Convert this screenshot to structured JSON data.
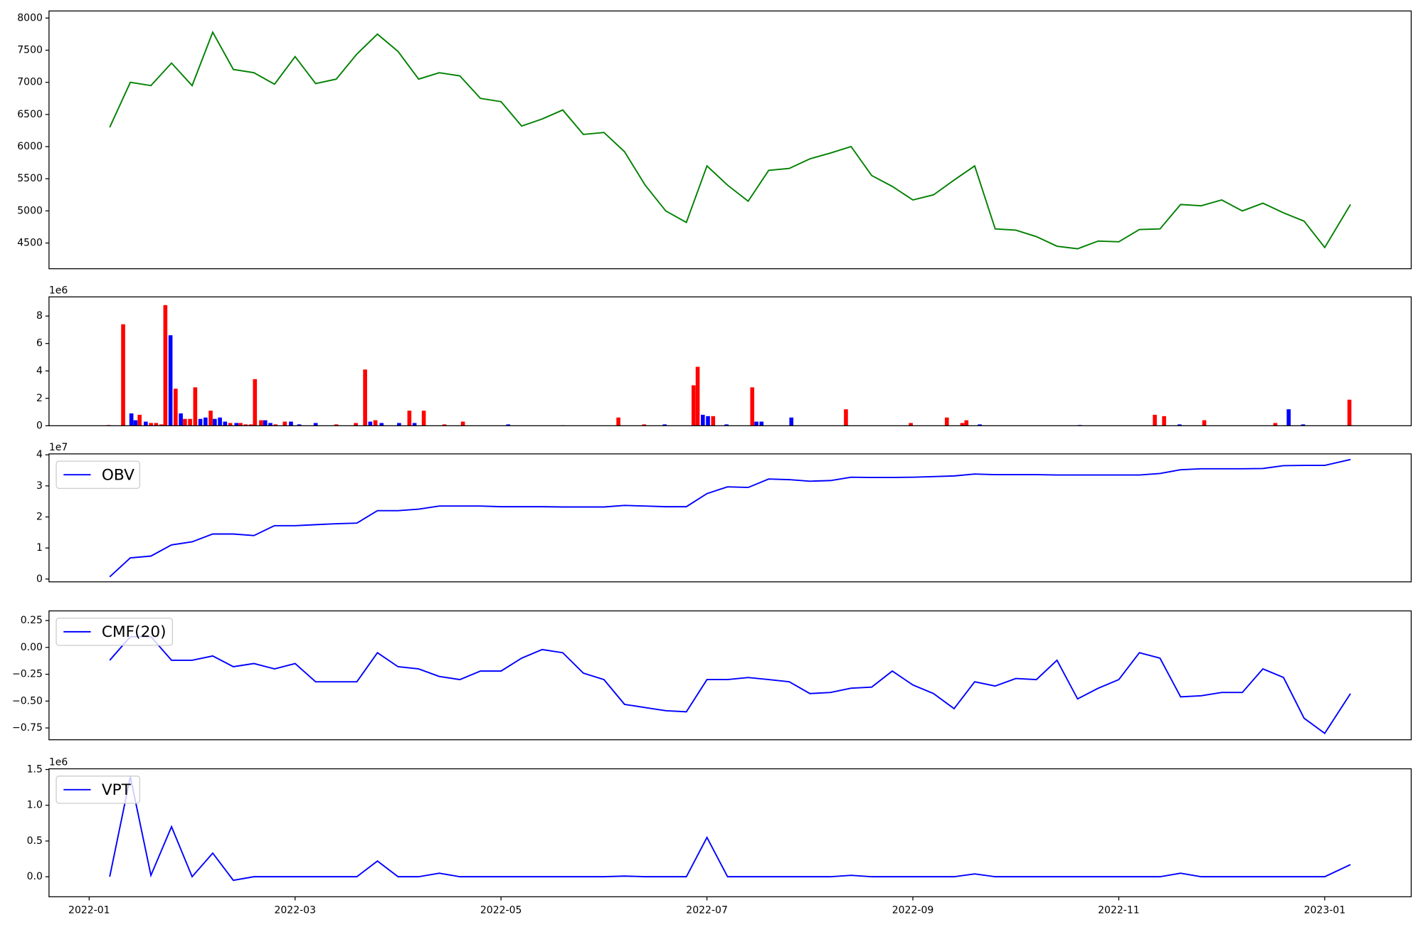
{
  "chart_data": [
    {
      "type": "line",
      "color": "green",
      "x": [
        0.2,
        0.4,
        0.6,
        0.8,
        1.0,
        1.2,
        1.4,
        1.6,
        1.8,
        2.0,
        2.2,
        2.4,
        2.6,
        2.8,
        3.0,
        3.2,
        3.4,
        3.6,
        3.8,
        4.0,
        4.2,
        4.4,
        4.6,
        4.8,
        5.0,
        5.2,
        5.4,
        5.6,
        5.8,
        6.0,
        6.2,
        6.4,
        6.6,
        6.8,
        7.0,
        7.2,
        7.4,
        7.6,
        7.8,
        8.0,
        8.2,
        8.4,
        8.6,
        8.8,
        9.0,
        9.2,
        9.4,
        9.6,
        9.8,
        10.0,
        10.2,
        10.4,
        10.6,
        10.8,
        11.0,
        11.2,
        11.4,
        11.6,
        11.8,
        12.0,
        12.25
      ],
      "values": [
        6300,
        7000,
        6950,
        7300,
        6950,
        7780,
        7200,
        7150,
        6970,
        7400,
        6980,
        7050,
        7440,
        7750,
        7480,
        7050,
        7150,
        7100,
        6750,
        6700,
        6320,
        6430,
        6570,
        6190,
        6220,
        5920,
        5400,
        5000,
        4820,
        5700,
        5400,
        5150,
        5630,
        5660,
        5810,
        5900,
        6000,
        5550,
        5380,
        5170,
        5250,
        5480,
        5700,
        4720,
        4700,
        4600,
        4450,
        4410,
        4530,
        4520,
        4710,
        4720,
        5100,
        5080,
        5170,
        5000,
        5120,
        4970,
        4840,
        4430,
        5100
      ],
      "xlim": [
        -0.39,
        12.84
      ],
      "ylim": [
        4100,
        8110
      ],
      "yticks": [
        4500,
        5000,
        5500,
        6000,
        6500,
        7000,
        7500,
        8000
      ]
    },
    {
      "type": "bar",
      "y_offset_label": "1e6",
      "x": [
        0.19,
        0.33,
        0.41,
        0.45,
        0.49,
        0.55,
        0.6,
        0.65,
        0.7,
        0.74,
        0.79,
        0.84,
        0.89,
        0.93,
        0.98,
        1.03,
        1.08,
        1.13,
        1.18,
        1.22,
        1.27,
        1.32,
        1.37,
        1.43,
        1.47,
        1.52,
        1.57,
        1.61,
        1.67,
        1.71,
        1.76,
        1.81,
        1.9,
        1.96,
        2.04,
        2.2,
        2.4,
        2.59,
        2.68,
        2.73,
        2.78,
        2.84,
        3.01,
        3.11,
        3.16,
        3.25,
        3.45,
        3.63,
        4.07,
        4.6,
        5.14,
        5.39,
        5.59,
        5.87,
        5.91,
        5.96,
        6.01,
        6.06,
        6.19,
        6.44,
        6.48,
        6.53,
        6.82,
        7.35,
        7.98,
        8.33,
        8.48,
        8.52,
        8.65,
        9.62,
        10.35,
        10.44,
        10.59,
        10.83,
        11.52,
        11.65,
        11.79,
        12.24
      ],
      "values": [
        0.05,
        7.4,
        0.9,
        0.4,
        0.8,
        0.3,
        0.2,
        0.2,
        0.1,
        8.8,
        6.6,
        2.7,
        0.9,
        0.5,
        0.5,
        2.8,
        0.5,
        0.6,
        1.1,
        0.5,
        0.6,
        0.3,
        0.2,
        0.2,
        0.2,
        0.1,
        0.1,
        3.4,
        0.4,
        0.4,
        0.2,
        0.1,
        0.3,
        0.3,
        0.1,
        0.2,
        0.1,
        0.2,
        4.1,
        0.3,
        0.4,
        0.2,
        0.2,
        1.1,
        0.2,
        1.1,
        0.1,
        0.3,
        0.1,
        0.03,
        0.6,
        0.1,
        0.1,
        2.95,
        4.3,
        0.8,
        0.7,
        0.7,
        0.1,
        2.8,
        0.3,
        0.3,
        0.6,
        1.2,
        0.2,
        0.6,
        0.2,
        0.4,
        0.1,
        0.05,
        0.8,
        0.7,
        0.1,
        0.4,
        0.2,
        1.2,
        0.1,
        1.9
      ],
      "colors": [
        "red",
        "red",
        "blue",
        "blue",
        "red",
        "blue",
        "red",
        "red",
        "red",
        "red",
        "blue",
        "red",
        "blue",
        "red",
        "red",
        "red",
        "blue",
        "blue",
        "red",
        "blue",
        "blue",
        "blue",
        "red",
        "blue",
        "red",
        "red",
        "red",
        "red",
        "red",
        "blue",
        "blue",
        "red",
        "red",
        "blue",
        "blue",
        "blue",
        "red",
        "red",
        "red",
        "blue",
        "red",
        "blue",
        "blue",
        "red",
        "blue",
        "red",
        "red",
        "red",
        "blue",
        "red",
        "red",
        "red",
        "blue",
        "red",
        "red",
        "blue",
        "blue",
        "red",
        "blue",
        "red",
        "blue",
        "blue",
        "blue",
        "red",
        "red",
        "red",
        "red",
        "red",
        "blue",
        "blue",
        "red",
        "red",
        "blue",
        "red",
        "red",
        "blue",
        "blue",
        "red"
      ],
      "xlim": [
        -0.39,
        12.84
      ],
      "ylim": [
        0,
        9.4
      ],
      "yticks": [
        0,
        2,
        4,
        6,
        8
      ]
    },
    {
      "type": "line",
      "y_offset_label": "1e7",
      "legend": "upper left",
      "x": [
        0.2,
        0.4,
        0.6,
        0.8,
        1.0,
        1.2,
        1.4,
        1.6,
        1.8,
        2.0,
        2.2,
        2.4,
        2.6,
        2.8,
        3.0,
        3.2,
        3.4,
        3.6,
        3.8,
        4.0,
        4.2,
        4.4,
        4.6,
        4.8,
        5.0,
        5.2,
        5.4,
        5.6,
        5.8,
        6.0,
        6.2,
        6.4,
        6.6,
        6.8,
        7.0,
        7.2,
        7.4,
        7.6,
        7.8,
        8.0,
        8.2,
        8.4,
        8.6,
        8.8,
        9.0,
        9.2,
        9.4,
        9.6,
        9.8,
        10.0,
        10.2,
        10.4,
        10.6,
        10.8,
        11.0,
        11.2,
        11.4,
        11.6,
        11.8,
        12.0,
        12.25
      ],
      "series": [
        {
          "name": "OBV",
          "color": "blue",
          "values": [
            0.07,
            0.68,
            0.74,
            1.1,
            1.2,
            1.45,
            1.45,
            1.4,
            1.72,
            1.72,
            1.75,
            1.78,
            1.8,
            2.2,
            2.2,
            2.25,
            2.35,
            2.35,
            2.35,
            2.33,
            2.33,
            2.33,
            2.32,
            2.32,
            2.32,
            2.37,
            2.35,
            2.33,
            2.33,
            2.75,
            2.97,
            2.95,
            3.22,
            3.2,
            3.15,
            3.17,
            3.28,
            3.27,
            3.27,
            3.28,
            3.3,
            3.32,
            3.38,
            3.36,
            3.36,
            3.36,
            3.35,
            3.35,
            3.35,
            3.35,
            3.35,
            3.4,
            3.52,
            3.55,
            3.55,
            3.55,
            3.56,
            3.65,
            3.66,
            3.66,
            3.85
          ]
        }
      ],
      "xlim": [
        -0.39,
        12.84
      ],
      "ylim": [
        -0.09,
        4.03
      ],
      "yticks": [
        0,
        1,
        2,
        3,
        4
      ]
    },
    {
      "type": "line",
      "legend": "upper left",
      "x": [
        0.2,
        0.4,
        0.6,
        0.8,
        1.0,
        1.2,
        1.4,
        1.6,
        1.8,
        2.0,
        2.2,
        2.4,
        2.6,
        2.8,
        3.0,
        3.2,
        3.4,
        3.6,
        3.8,
        4.0,
        4.2,
        4.4,
        4.6,
        4.8,
        5.0,
        5.2,
        5.4,
        5.6,
        5.8,
        6.0,
        6.2,
        6.4,
        6.6,
        6.8,
        7.0,
        7.2,
        7.4,
        7.6,
        7.8,
        8.0,
        8.2,
        8.4,
        8.6,
        8.8,
        9.0,
        9.2,
        9.4,
        9.6,
        9.8,
        10.0,
        10.2,
        10.4,
        10.6,
        10.8,
        11.0,
        11.2,
        11.4,
        11.6,
        11.8,
        12.0,
        12.25
      ],
      "series": [
        {
          "name": "CMF(20)",
          "color": "blue",
          "values": [
            -0.12,
            0.1,
            0.1,
            -0.12,
            -0.12,
            -0.08,
            -0.18,
            -0.15,
            -0.2,
            -0.15,
            -0.32,
            -0.32,
            -0.32,
            -0.05,
            -0.18,
            -0.2,
            -0.27,
            -0.3,
            -0.22,
            -0.22,
            -0.1,
            -0.02,
            -0.05,
            -0.24,
            -0.3,
            -0.53,
            -0.56,
            -0.59,
            -0.6,
            -0.3,
            -0.3,
            -0.28,
            -0.3,
            -0.32,
            -0.43,
            -0.42,
            -0.38,
            -0.37,
            -0.22,
            -0.35,
            -0.43,
            -0.57,
            -0.32,
            -0.36,
            -0.29,
            -0.3,
            -0.12,
            -0.48,
            -0.38,
            -0.3,
            -0.05,
            -0.1,
            -0.46,
            -0.45,
            -0.42,
            -0.42,
            -0.2,
            -0.28,
            -0.66,
            -0.8,
            -0.43
          ]
        }
      ],
      "xlim": [
        -0.39,
        12.84
      ],
      "ylim": [
        -0.86,
        0.34
      ],
      "yticks": [
        {
          "value": -0.75,
          "label": "−0.75"
        },
        {
          "value": -0.5,
          "label": "−0.50"
        },
        {
          "value": -0.25,
          "label": "−0.25"
        },
        {
          "value": 0,
          "label": "0.00"
        },
        0.25
      ]
    },
    {
      "type": "line",
      "y_offset_label": "1e6",
      "legend": "upper left",
      "x": [
        0.2,
        0.4,
        0.6,
        0.8,
        1.0,
        1.2,
        1.4,
        1.6,
        1.8,
        2.0,
        2.2,
        2.4,
        2.6,
        2.8,
        3.0,
        3.2,
        3.4,
        3.6,
        3.8,
        4.0,
        4.2,
        4.4,
        4.6,
        4.8,
        5.0,
        5.2,
        5.4,
        5.6,
        5.8,
        6.0,
        6.2,
        6.4,
        6.6,
        6.8,
        7.0,
        7.2,
        7.4,
        7.6,
        7.8,
        8.0,
        8.2,
        8.4,
        8.6,
        8.8,
        9.0,
        9.2,
        9.4,
        9.6,
        9.8,
        10.0,
        10.2,
        10.4,
        10.6,
        10.8,
        11.0,
        11.2,
        11.4,
        11.6,
        11.8,
        12.0,
        12.25
      ],
      "series": [
        {
          "name": "VPT",
          "color": "blue",
          "values": [
            0,
            1.4,
            0.02,
            0.7,
            0,
            0.33,
            -0.05,
            0,
            0,
            0,
            0,
            0,
            0,
            0.22,
            0,
            0,
            0.05,
            0,
            0,
            0,
            0,
            0,
            0,
            0,
            0,
            0.01,
            0,
            0,
            0,
            0.55,
            0,
            0,
            0,
            0,
            0,
            0,
            0.02,
            0,
            0,
            0,
            0,
            0,
            0.04,
            0,
            0,
            0,
            0,
            0,
            0,
            0,
            0,
            0,
            0.05,
            0,
            0,
            0,
            0,
            0,
            0,
            0,
            0.17
          ]
        }
      ],
      "xlim": [
        -0.39,
        12.84
      ],
      "ylim": [
        -0.28,
        1.51
      ],
      "yticks": [
        {
          "value": 0,
          "label": "0.0"
        },
        0.5,
        {
          "value": 1,
          "label": "1.0"
        },
        1.5
      ],
      "xticks": [
        {
          "value": 0,
          "label": "2022-01"
        },
        {
          "value": 2,
          "label": "2022-03"
        },
        {
          "value": 4,
          "label": "2022-05"
        },
        {
          "value": 6,
          "label": "2022-07"
        },
        {
          "value": 8,
          "label": "2022-09"
        },
        {
          "value": 10,
          "label": "2022-11"
        },
        {
          "value": 12,
          "label": "2023-01"
        }
      ]
    }
  ]
}
